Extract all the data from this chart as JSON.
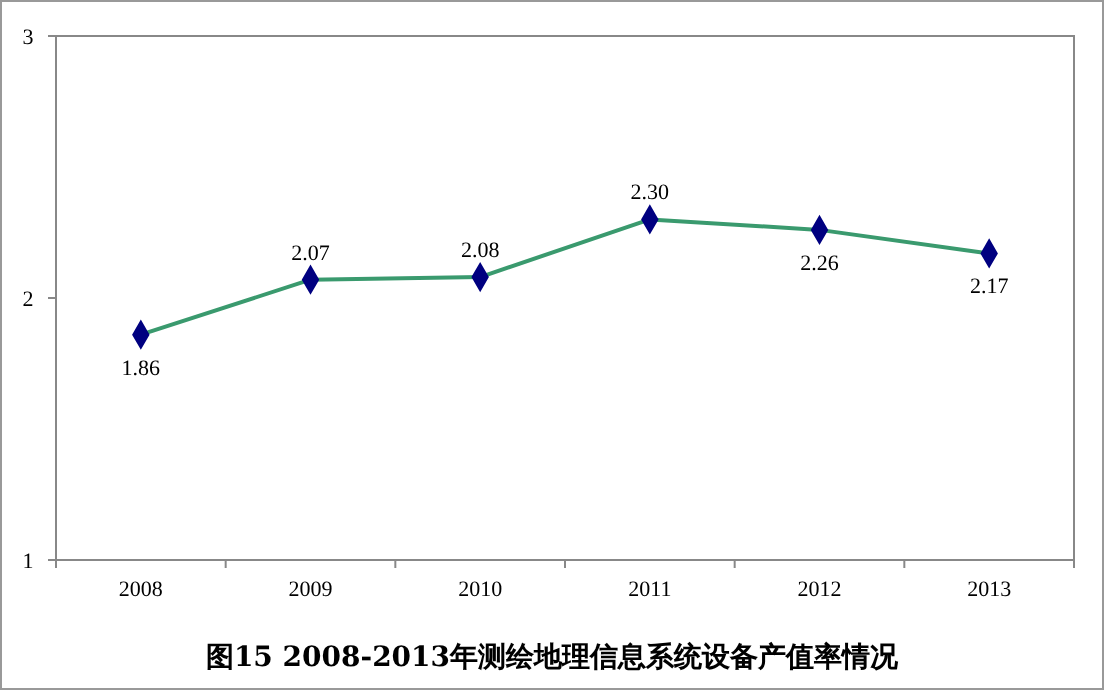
{
  "chart_data": {
    "type": "line",
    "title": "图15  2008-2013年测绘地理信息系统设备产值率情况",
    "categories": [
      "2008",
      "2009",
      "2010",
      "2011",
      "2012",
      "2013"
    ],
    "series": [
      {
        "color": "#3a9a6e",
        "values": [
          1.86,
          2.07,
          2.08,
          2.3,
          2.26,
          2.17
        ],
        "value_labels": [
          "1.86",
          "2.07",
          "2.08",
          "2.30",
          "2.26",
          "2.17"
        ]
      }
    ],
    "ylim": [
      1,
      3
    ],
    "yticks": [
      1,
      2,
      3
    ],
    "marker": "diamond",
    "line_style": "solid"
  }
}
